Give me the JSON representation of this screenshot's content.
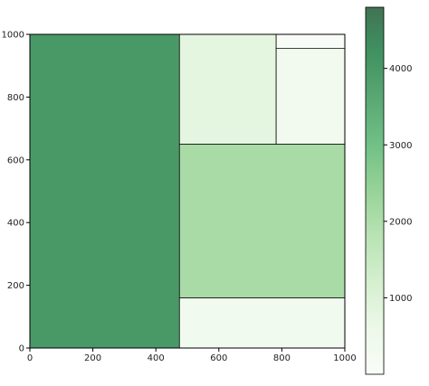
{
  "chart_data": {
    "type": "treemap",
    "title": "",
    "xlabel": "",
    "ylabel": "",
    "xlim": [
      0,
      1000
    ],
    "ylim": [
      0,
      1000
    ],
    "x_ticks": [
      0,
      200,
      400,
      600,
      800,
      1000
    ],
    "y_ticks": [
      0,
      200,
      400,
      600,
      800,
      1000
    ],
    "rects": [
      {
        "x": 0,
        "y": 0,
        "dx": 475,
        "dy": 1000,
        "value": 4000
      },
      {
        "x": 475,
        "y": 0,
        "dx": 525,
        "dy": 160,
        "value": 350
      },
      {
        "x": 475,
        "y": 160,
        "dx": 525,
        "dy": 490,
        "value": 2100
      },
      {
        "x": 475,
        "y": 650,
        "dx": 307,
        "dy": 350,
        "value": 800
      },
      {
        "x": 782,
        "y": 650,
        "dx": 218,
        "dy": 305,
        "value": 300
      },
      {
        "x": 782,
        "y": 955,
        "dx": 218,
        "dy": 45,
        "value": 50
      }
    ],
    "colorbar": {
      "colormap": "Greens",
      "min": 0,
      "max": 4800,
      "ticks": [
        1000,
        2000,
        3000,
        4000
      ],
      "stops": [
        "#f7fcf5",
        "#e5f5e0",
        "#c7e9c0",
        "#a1d99b",
        "#74c476",
        "#41ab5d",
        "#238b45",
        "#006d2c",
        "#00441b"
      ],
      "alpha": 0.75
    }
  }
}
